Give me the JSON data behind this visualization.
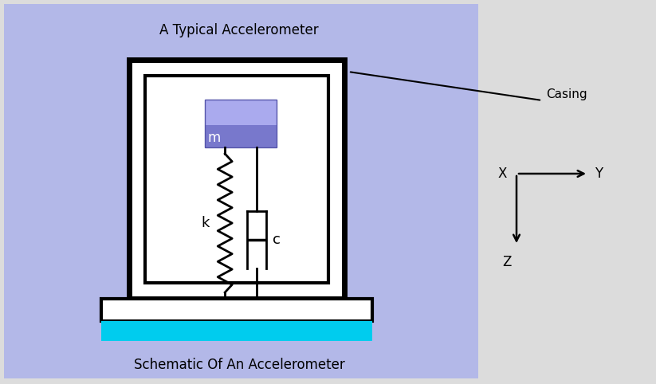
{
  "bg_left": "#b3b8e8",
  "bg_right": "#dcdcdc",
  "title_top": "A Typical Accelerometer",
  "title_bottom": "Schematic Of An Accelerometer",
  "casing_label": "Casing",
  "mass_color_dark": "#7878cc",
  "mass_color_light": "#aaaaee",
  "cyan_bar": "#00ccee",
  "white": "#ffffff",
  "black": "#000000",
  "fig_w": 8.23,
  "fig_h": 4.82,
  "dpi": 100
}
